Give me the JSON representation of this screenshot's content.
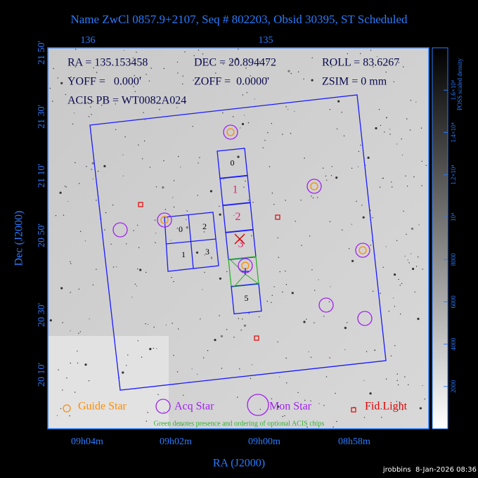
{
  "header": {
    "title": "Name ZwCl 0857.9+2107, Seq # 802203, Obsid 30395, ST Scheduled"
  },
  "axes": {
    "top_ticks": [
      "136",
      "135"
    ],
    "left_ticks": [
      "21 50'",
      "21 30'",
      "21 10'",
      "20 50'",
      "20 30'",
      "20 10'"
    ],
    "bottom_ticks": [
      "09h04m",
      "09h02m",
      "09h00m",
      "08h58m"
    ],
    "x_label": "RA (J2000)",
    "y_label": "Dec (J2000)"
  },
  "info": {
    "ra": "RA = 135.153458",
    "dec": "DEC = 20.894472",
    "roll": "ROLL = 83.6267",
    "yoff": "YOFF =   0.000'",
    "zoff": "ZOFF =  0.0000'",
    "zsim": "ZSIM = 0 mm",
    "pb": "ACIS PB = WT0082A024"
  },
  "chips": {
    "i": [
      "0",
      "2",
      "1",
      "3"
    ],
    "s": [
      "0",
      "1",
      "2",
      "3",
      "5"
    ]
  },
  "legend": [
    "Guide Star",
    "Acq Star",
    "Mon Star",
    "Fid Light"
  ],
  "note": "Green denotes presence and ordering of optional ACIS chips",
  "colorbar": {
    "label": "POSS scaled density",
    "ylim": [
      0,
      18000
    ],
    "yticks": [
      2000,
      4000,
      6000,
      8000,
      {
        "value": 10000,
        "label": "10⁴"
      },
      {
        "value": 12000,
        "label": "1.2×10⁴"
      },
      {
        "value": 14000,
        "label": "1.4×10⁴"
      },
      {
        "value": 16000,
        "label": "1.6×10⁴"
      }
    ]
  },
  "footer": "jrobbins  8-Jan-2026 08:36"
}
